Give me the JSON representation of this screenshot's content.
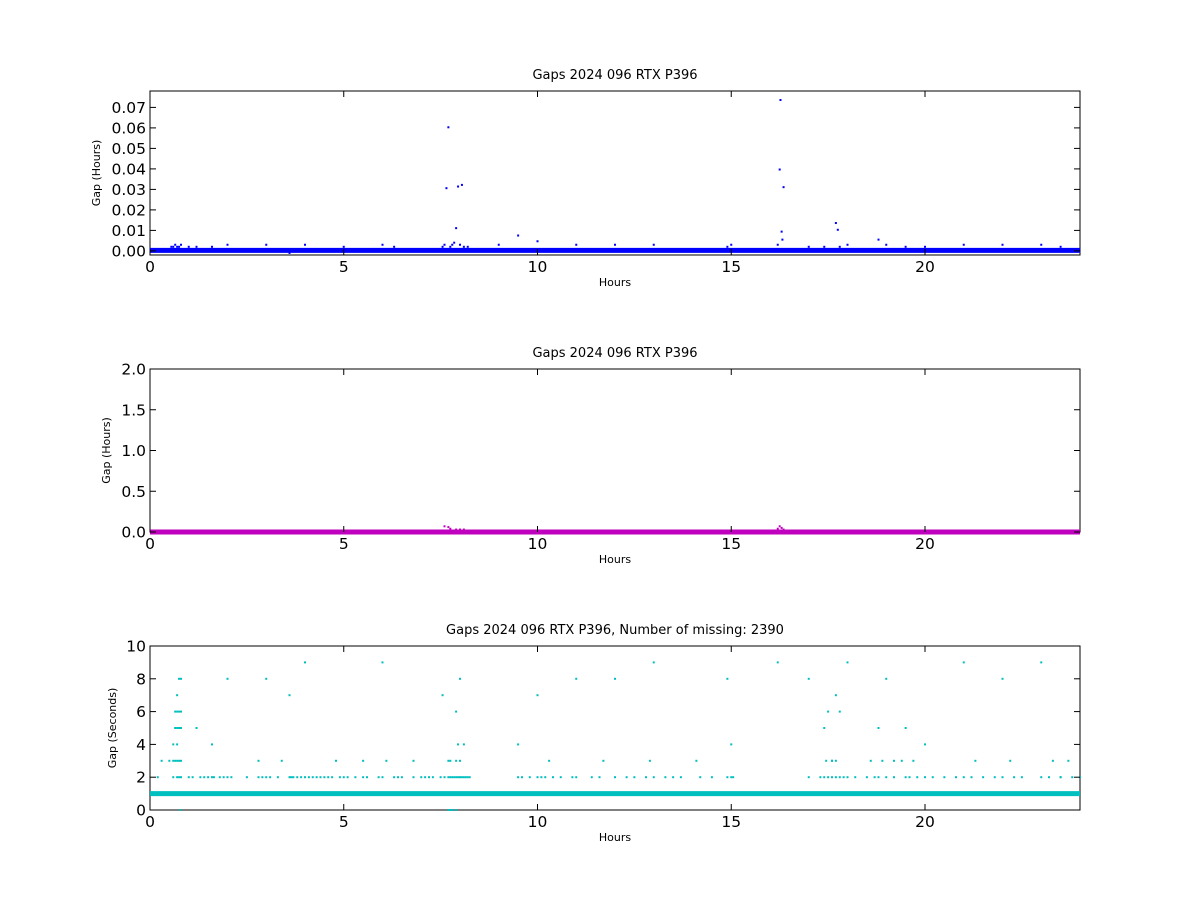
{
  "chart_data": [
    {
      "type": "scatter",
      "title": "Gaps 2024 096 RTX  P396",
      "xlabel": "Hours",
      "ylabel": "Gap (Hours)",
      "xlim": [
        0,
        24
      ],
      "ylim": [
        -0.002,
        0.078
      ],
      "xticks": [
        0,
        5,
        10,
        15,
        20
      ],
      "yticks": [
        0.0,
        0.01,
        0.02,
        0.03,
        0.04,
        0.05,
        0.06,
        0.07
      ],
      "ytick_labels": [
        "0.00",
        "0.01",
        "0.02",
        "0.03",
        "0.04",
        "0.05",
        "0.06",
        "0.07"
      ],
      "grid": false,
      "color": "#0000ff",
      "baseline": {
        "y": 0.000278,
        "x_range": [
          0,
          24
        ]
      },
      "series": [
        {
          "x": [
            0.55,
            0.6,
            0.65,
            0.7,
            0.75,
            0.8,
            1.0,
            1.2,
            1.6,
            2.0,
            3.0,
            3.6,
            4.0,
            5.0,
            6.0,
            6.3,
            7.55,
            7.6,
            7.65,
            7.7,
            7.75,
            7.8,
            7.85,
            7.9,
            7.95,
            8.0,
            8.05,
            8.1,
            8.2,
            9.0,
            9.5,
            10.0,
            11.0,
            12.0,
            13.0,
            14.9,
            15.0,
            16.2,
            16.25,
            16.27,
            16.3,
            16.32,
            16.35,
            17.0,
            17.4,
            17.7,
            17.75,
            17.8,
            18.0,
            18.8,
            19.0,
            19.5,
            20.0,
            21.0,
            22.0,
            23.0,
            23.5
          ],
          "y": [
            0.002,
            0.002,
            0.003,
            0.002,
            0.002,
            0.003,
            0.002,
            0.002,
            0.002,
            0.003,
            0.003,
            -0.001,
            0.003,
            0.002,
            0.003,
            0.002,
            0.002,
            0.003,
            0.0306,
            0.0603,
            0.002,
            0.003,
            0.004,
            0.0111,
            0.0314,
            0.003,
            0.0322,
            0.002,
            0.002,
            0.003,
            0.0075,
            0.0047,
            0.003,
            0.003,
            0.003,
            0.002,
            0.003,
            0.003,
            0.0397,
            0.0736,
            0.0094,
            0.0055,
            0.0311,
            0.002,
            0.002,
            0.0136,
            0.0103,
            0.002,
            0.003,
            0.0055,
            0.003,
            0.002,
            0.002,
            0.003,
            0.003,
            0.003,
            0.002
          ]
        }
      ]
    },
    {
      "type": "scatter",
      "title": "Gaps 2024 096 RTX  P396",
      "xlabel": "Hours",
      "ylabel": "Gap (Hours)",
      "xlim": [
        0,
        24
      ],
      "ylim": [
        0,
        2
      ],
      "xticks": [
        0,
        5,
        10,
        15,
        20
      ],
      "yticks": [
        0.0,
        0.5,
        1.0,
        1.5,
        2.0
      ],
      "ytick_labels": [
        "0.0",
        "0.5",
        "1.0",
        "1.5",
        "2.0"
      ],
      "grid": false,
      "color": "#bf00bf",
      "baseline": {
        "y": 0.0003,
        "x_range": [
          0,
          24
        ]
      },
      "series": [
        {
          "x": [
            7.6,
            7.7,
            7.75,
            7.9,
            8.0,
            8.1,
            16.2,
            16.25,
            16.3,
            16.35
          ],
          "y": [
            0.07,
            0.06,
            0.04,
            0.03,
            0.03,
            0.03,
            0.04,
            0.07,
            0.05,
            0.03
          ]
        }
      ]
    },
    {
      "type": "scatter",
      "title": "Gaps 2024 096 RTX  P396, Number of missing: 2390",
      "xlabel": "Hours",
      "ylabel": "Gap (Seconds)",
      "xlim": [
        0,
        24
      ],
      "ylim": [
        0,
        10
      ],
      "xticks": [
        0,
        5,
        10,
        15,
        20
      ],
      "yticks": [
        0,
        2,
        4,
        6,
        8,
        10
      ],
      "ytick_labels": [
        "0",
        "2",
        "4",
        "6",
        "8",
        "10"
      ],
      "grid": false,
      "color": "#00bfbf",
      "baseline": {
        "y": 1,
        "x_range": [
          0,
          24
        ]
      },
      "series": [
        {
          "x": [
            0.3,
            0.5,
            0.6,
            0.65,
            0.7,
            0.75,
            0.8,
            0.2,
            0.6,
            0.7,
            0.75,
            0.8,
            0.6,
            0.7,
            0.65,
            0.7,
            0.75,
            0.8,
            0.65,
            0.7,
            0.75,
            0.8,
            0.7,
            0.75,
            0.8,
            0.78,
            1.0,
            1.1,
            1.3,
            1.4,
            1.5,
            1.6,
            1.65,
            1.8,
            1.9,
            2.0,
            2.1,
            2.5,
            2.8,
            2.9,
            3.0,
            3.1,
            3.3,
            3.6,
            3.65,
            3.7,
            3.8,
            3.9,
            4.0,
            4.1,
            4.2,
            4.3,
            4.4,
            4.5,
            4.6,
            4.7,
            4.9,
            5.0,
            5.1,
            5.3,
            5.5,
            5.6,
            5.9,
            6.0,
            6.3,
            6.4,
            6.5,
            6.8,
            7.0,
            7.1,
            7.2,
            7.3,
            7.5,
            7.6,
            7.7,
            7.75,
            7.8,
            7.85,
            7.9,
            7.95,
            8.0,
            8.05,
            8.1,
            8.15,
            8.2,
            8.25,
            9.5,
            9.6,
            9.8,
            10.0,
            10.1,
            10.2,
            10.4,
            10.6,
            10.9,
            11.0,
            11.4,
            11.6,
            12.0,
            12.3,
            12.5,
            12.8,
            13.0,
            13.3,
            13.5,
            13.7,
            14.2,
            14.5,
            14.9,
            15.0,
            15.05,
            17.0,
            17.3,
            17.4,
            17.5,
            17.6,
            17.7,
            17.8,
            17.9,
            18.0,
            18.2,
            18.5,
            18.7,
            18.8,
            19.0,
            19.2,
            19.5,
            19.6,
            19.8,
            20.0,
            20.2,
            20.5,
            20.8,
            21.0,
            21.2,
            21.5,
            21.8,
            22.0,
            22.3,
            22.5,
            23.0,
            23.2,
            23.5,
            23.8,
            24.0,
            1.2,
            1.6,
            2.0,
            3.0,
            3.6,
            4.0,
            6.0,
            7.55,
            7.9,
            7.95,
            8.0,
            8.1,
            9.5,
            10.0,
            11.0,
            12.0,
            13.0,
            14.9,
            15.0,
            16.2,
            17.0,
            17.4,
            17.5,
            17.6,
            17.7,
            17.8,
            18.0,
            18.8,
            19.0,
            19.5,
            20.0,
            21.0,
            22.0,
            23.0,
            23.5,
            2.8,
            3.4,
            4.8,
            5.5,
            6.1,
            6.8,
            7.7,
            7.75,
            7.9,
            8.0,
            10.3,
            11.7,
            12.9,
            14.1,
            17.45,
            17.6,
            17.7,
            18.6,
            18.9,
            19.2,
            19.4,
            19.7,
            21.3,
            22.2,
            23.3,
            23.7,
            7.7,
            7.75,
            7.8,
            7.9
          ],
          "y": [
            3,
            3,
            3,
            3,
            3,
            3,
            3,
            2,
            2,
            2,
            2,
            2,
            4,
            4,
            5,
            5,
            5,
            5,
            6,
            6,
            6,
            6,
            7,
            8,
            8,
            0,
            2,
            2,
            2,
            2,
            2,
            2,
            2,
            2,
            2,
            2,
            2,
            2,
            2,
            2,
            2,
            2,
            2,
            2,
            2,
            2,
            2,
            2,
            2,
            2,
            2,
            2,
            2,
            2,
            2,
            2,
            2,
            2,
            2,
            2,
            2,
            2,
            2,
            2,
            2,
            2,
            2,
            2,
            2,
            2,
            2,
            2,
            2,
            2,
            2,
            2,
            2,
            2,
            2,
            2,
            2,
            2,
            2,
            2,
            2,
            2,
            2,
            2,
            2,
            2,
            2,
            2,
            2,
            2,
            2,
            2,
            2,
            2,
            2,
            2,
            2,
            2,
            2,
            2,
            2,
            2,
            2,
            2,
            2,
            2,
            2,
            2,
            2,
            2,
            2,
            2,
            2,
            2,
            2,
            2,
            2,
            2,
            2,
            2,
            2,
            2,
            2,
            2,
            2,
            2,
            2,
            2,
            2,
            2,
            2,
            2,
            2,
            2,
            2,
            2,
            2,
            2,
            2,
            2,
            2,
            5,
            4,
            8,
            8,
            7,
            9,
            9,
            7,
            6,
            4,
            8,
            4,
            4,
            7,
            8,
            8,
            9,
            8,
            4,
            9,
            8,
            5,
            6,
            3,
            7,
            6,
            9,
            5,
            8,
            5,
            4,
            9,
            8,
            9,
            2,
            3,
            3,
            3,
            3,
            3,
            3,
            3,
            3,
            3,
            3,
            3,
            3,
            3,
            3,
            3,
            3,
            3,
            3,
            3,
            3,
            3,
            3,
            3,
            3,
            3,
            3,
            0,
            0,
            0,
            0
          ]
        }
      ]
    }
  ]
}
